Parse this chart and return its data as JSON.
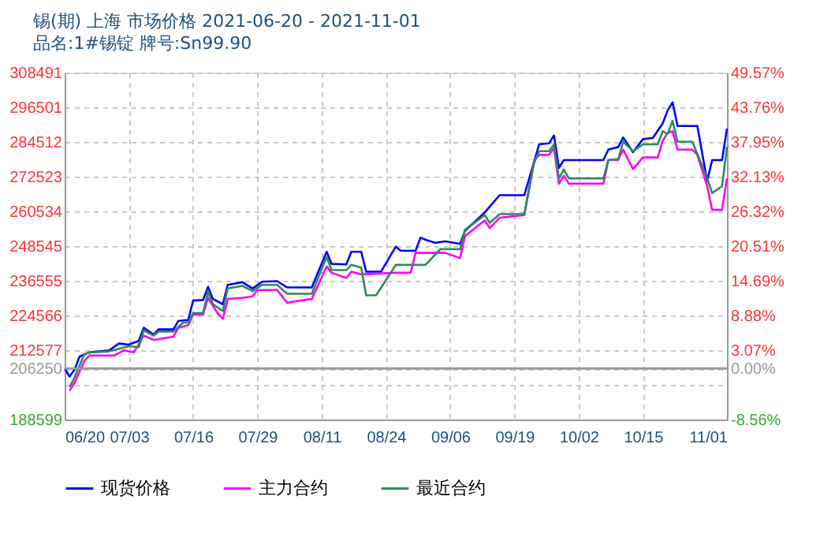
{
  "chart_data": {
    "type": "line",
    "title": "锡(期) 上海 市场价格 2021-06-20 - 2021-11-01",
    "subtitle": "品名:1#锡锭 牌号:Sn99.90",
    "xlim": [
      "2021-06-20",
      "2021-11-01"
    ],
    "xticks": [
      {
        "value": "2021-06-20",
        "label": "06/20"
      },
      {
        "value": "2021-07-03",
        "label": "07/03"
      },
      {
        "value": "2021-07-16",
        "label": "07/16"
      },
      {
        "value": "2021-07-29",
        "label": "07/29"
      },
      {
        "value": "2021-08-11",
        "label": "08/11"
      },
      {
        "value": "2021-08-24",
        "label": "08/24"
      },
      {
        "value": "2021-09-06",
        "label": "09/06"
      },
      {
        "value": "2021-09-19",
        "label": "09/19"
      },
      {
        "value": "2021-10-02",
        "label": "10/02"
      },
      {
        "value": "2021-10-15",
        "label": "10/15"
      },
      {
        "value": "2021-11-01",
        "label": "11/01"
      }
    ],
    "ylim": [
      188599,
      308491
    ],
    "yticks": [
      188599,
      {
        "value": 200588,
        "label": null
      },
      206250,
      212577,
      224566,
      236555,
      248545,
      260534,
      272523,
      284512,
      296501,
      308491
    ],
    "y2lim": [
      -8.56,
      49.57
    ],
    "y2ticks": [
      {
        "value": -8.56,
        "label": "-8.56%"
      },
      {
        "value": 0,
        "label": "0.00%"
      },
      {
        "value": 3.07,
        "label": "3.07%"
      },
      {
        "value": 8.88,
        "label": "8.88%"
      },
      {
        "value": 14.69,
        "label": "14.69%"
      },
      {
        "value": 20.51,
        "label": "20.51%"
      },
      {
        "value": 26.32,
        "label": "26.32%"
      },
      {
        "value": 32.13,
        "label": "32.13%"
      },
      {
        "value": 37.95,
        "label": "37.95%"
      },
      {
        "value": 43.76,
        "label": "43.76%"
      },
      {
        "value": 49.57,
        "label": "49.57%"
      }
    ],
    "ref_lines": [
      {
        "axis": "y",
        "value": 206250,
        "color": "#999999"
      }
    ],
    "grid": true,
    "legend": "bottom",
    "marker": "none",
    "line_style": "solid",
    "series": [
      {
        "name": "现货价格",
        "color": "#0000ff",
        "x": [
          "2021-06-20",
          "2021-06-21",
          "2021-06-22",
          "2021-06-23",
          "2021-06-25",
          "2021-06-29",
          "2021-07-01",
          "2021-07-03",
          "2021-07-05",
          "2021-07-06",
          "2021-07-08",
          "2021-07-09",
          "2021-07-12",
          "2021-07-13",
          "2021-07-15",
          "2021-07-16",
          "2021-07-18",
          "2021-07-19",
          "2021-07-20",
          "2021-07-22",
          "2021-07-23",
          "2021-07-26",
          "2021-07-28",
          "2021-07-30",
          "2021-08-02",
          "2021-08-04",
          "2021-08-09",
          "2021-08-12",
          "2021-08-13",
          "2021-08-16",
          "2021-08-17",
          "2021-08-19",
          "2021-08-20",
          "2021-08-23",
          "2021-08-26",
          "2021-08-27",
          "2021-08-30",
          "2021-08-31",
          "2021-09-01",
          "2021-09-03",
          "2021-09-05",
          "2021-09-08",
          "2021-09-09",
          "2021-09-13",
          "2021-09-16",
          "2021-09-21",
          "2021-09-24",
          "2021-09-26",
          "2021-09-27",
          "2021-09-28",
          "2021-09-29",
          "2021-10-07",
          "2021-10-08",
          "2021-10-10",
          "2021-10-11",
          "2021-10-13",
          "2021-10-15",
          "2021-10-17",
          "2021-10-19",
          "2021-10-20",
          "2021-10-21",
          "2021-10-22",
          "2021-10-26",
          "2021-10-28",
          "2021-10-29",
          "2021-10-31",
          "2021-11-01"
        ],
        "values": [
          206250,
          203453,
          205810,
          210335,
          211783,
          212508,
          214862,
          214500,
          215768,
          220295,
          217941,
          219752,
          219752,
          222649,
          223011,
          229712,
          229893,
          234420,
          230255,
          228444,
          235144,
          236050,
          233877,
          236231,
          236412,
          234239,
          234239,
          246553,
          242388,
          242207,
          246553,
          246553,
          239672,
          239672,
          248366,
          246917,
          246917,
          251445,
          250720,
          249634,
          250177,
          249271,
          253799,
          260138,
          266114,
          266114,
          283680,
          284042,
          286759,
          275531,
          278248,
          278248,
          281870,
          282775,
          286035,
          280964,
          285492,
          285854,
          290925,
          295452,
          298169,
          290018,
          290018,
          271002,
          278248,
          278248,
          289113
        ]
      },
      {
        "name": "主力合约",
        "color": "#ff00ff",
        "x": [
          "2021-06-21",
          "2021-06-22",
          "2021-06-24",
          "2021-06-25",
          "2021-06-30",
          "2021-07-02",
          "2021-07-04",
          "2021-07-06",
          "2021-07-08",
          "2021-07-12",
          "2021-07-13",
          "2021-07-15",
          "2021-07-16",
          "2021-07-18",
          "2021-07-19",
          "2021-07-21",
          "2021-07-22",
          "2021-07-23",
          "2021-07-26",
          "2021-07-28",
          "2021-07-29",
          "2021-08-02",
          "2021-08-04",
          "2021-08-09",
          "2021-08-12",
          "2021-08-13",
          "2021-08-16",
          "2021-08-17",
          "2021-08-19",
          "2021-08-26",
          "2021-08-29",
          "2021-08-30",
          "2021-09-05",
          "2021-09-08",
          "2021-09-09",
          "2021-09-13",
          "2021-09-14",
          "2021-09-16",
          "2021-09-21",
          "2021-09-23",
          "2021-09-24",
          "2021-09-26",
          "2021-09-27",
          "2021-09-28",
          "2021-09-29",
          "2021-09-30",
          "2021-10-07",
          "2021-10-08",
          "2021-10-10",
          "2021-10-11",
          "2021-10-13",
          "2021-10-15",
          "2021-10-18",
          "2021-10-19",
          "2021-10-20",
          "2021-10-21",
          "2021-10-22",
          "2021-10-25",
          "2021-10-26",
          "2021-10-28",
          "2021-10-29",
          "2021-10-31",
          "2021-11-01"
        ],
        "values": [
          198563,
          201279,
          208886,
          210697,
          210697,
          212508,
          211783,
          217578,
          216129,
          217216,
          220295,
          221200,
          224822,
          224822,
          230617,
          225184,
          223373,
          230255,
          230617,
          231160,
          233334,
          233334,
          228988,
          230255,
          241483,
          239310,
          237499,
          239672,
          238767,
          239310,
          239310,
          246191,
          246191,
          244380,
          251987,
          257420,
          254703,
          258325,
          259231,
          278248,
          280059,
          280059,
          282413,
          270097,
          272814,
          270097,
          270097,
          278248,
          278248,
          281870,
          275168,
          279153,
          279153,
          284948,
          287665,
          288207,
          281870,
          281870,
          280059,
          269191,
          261041,
          261041,
          271908
        ]
      },
      {
        "name": "最近合约",
        "color": "#2e8b57",
        "x": [
          "2021-06-21",
          "2021-06-22",
          "2021-06-24",
          "2021-06-25",
          "2021-06-29",
          "2021-07-03",
          "2021-07-05",
          "2021-07-06",
          "2021-07-08",
          "2021-07-09",
          "2021-07-12",
          "2021-07-14",
          "2021-07-15",
          "2021-07-16",
          "2021-07-18",
          "2021-07-19",
          "2021-07-20",
          "2021-07-22",
          "2021-07-23",
          "2021-07-26",
          "2021-07-28",
          "2021-07-30",
          "2021-08-02",
          "2021-08-04",
          "2021-08-09",
          "2021-08-12",
          "2021-08-13",
          "2021-08-16",
          "2021-08-17",
          "2021-08-19",
          "2021-08-20",
          "2021-08-22",
          "2021-08-26",
          "2021-09-01",
          "2021-09-04",
          "2021-09-08",
          "2021-09-09",
          "2021-09-13",
          "2021-09-14",
          "2021-09-16",
          "2021-09-21",
          "2021-09-23",
          "2021-09-24",
          "2021-09-26",
          "2021-09-27",
          "2021-09-28",
          "2021-09-29",
          "2021-09-30",
          "2021-10-07",
          "2021-10-08",
          "2021-10-10",
          "2021-10-11",
          "2021-10-13",
          "2021-10-15",
          "2021-10-18",
          "2021-10-19",
          "2021-10-20",
          "2021-10-21",
          "2021-10-22",
          "2021-10-25",
          "2021-10-28",
          "2021-10-29",
          "2021-10-31",
          "2021-11-01"
        ],
        "values": [
          199831,
          203091,
          211240,
          211783,
          212146,
          213957,
          213594,
          219389,
          217578,
          219027,
          219027,
          222105,
          222105,
          225365,
          225365,
          232609,
          228444,
          226090,
          233877,
          234783,
          232972,
          235144,
          235144,
          232066,
          232066,
          244742,
          240215,
          240215,
          242026,
          241121,
          231523,
          231523,
          242026,
          242026,
          247459,
          247459,
          254160,
          259231,
          256514,
          259593,
          259593,
          277342,
          281326,
          281326,
          283680,
          271908,
          274987,
          271908,
          271908,
          278248,
          278610,
          284586,
          281326,
          283680,
          283680,
          288207,
          287302,
          291830,
          284586,
          284586,
          271908,
          266837,
          269191,
          282775
        ]
      }
    ]
  }
}
